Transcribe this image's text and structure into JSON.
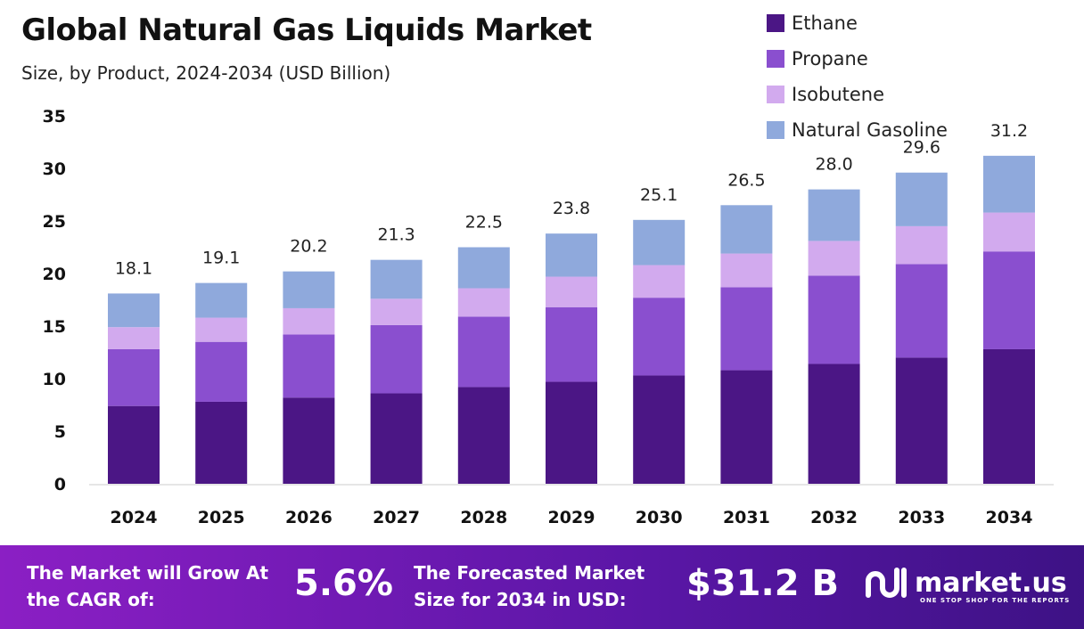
{
  "chart_data": {
    "type": "bar",
    "stacked": true,
    "title": "Global Natural Gas Liquids Market",
    "subtitle": "Size, by Product, 2024-2034 (USD Billion)",
    "categories": [
      "2024",
      "2025",
      "2026",
      "2027",
      "2028",
      "2029",
      "2030",
      "2031",
      "2032",
      "2033",
      "2034"
    ],
    "series": [
      {
        "name": "Ethane",
        "color": "#4b1685",
        "values": [
          7.4,
          7.8,
          8.2,
          8.6,
          9.2,
          9.7,
          10.3,
          10.8,
          11.4,
          12.0,
          12.8
        ]
      },
      {
        "name": "Propane",
        "color": "#8a4fcf",
        "values": [
          5.4,
          5.7,
          6.0,
          6.5,
          6.7,
          7.1,
          7.4,
          7.9,
          8.4,
          8.9,
          9.3
        ]
      },
      {
        "name": "Isobutene",
        "color": "#d2aaee",
        "values": [
          2.1,
          2.3,
          2.5,
          2.5,
          2.7,
          2.9,
          3.1,
          3.2,
          3.3,
          3.6,
          3.7
        ]
      },
      {
        "name": "Natural Gasoline",
        "color": "#8fa9dc",
        "values": [
          3.2,
          3.3,
          3.5,
          3.7,
          3.9,
          4.1,
          4.3,
          4.6,
          4.9,
          5.1,
          5.4
        ]
      }
    ],
    "totals": [
      "18.1",
      "19.1",
      "20.2",
      "21.3",
      "22.5",
      "23.8",
      "25.1",
      "26.5",
      "28.0",
      "29.6",
      "31.2"
    ],
    "ylim": [
      0,
      35
    ],
    "yticks": [
      "0",
      "5",
      "10",
      "15",
      "20",
      "25",
      "30",
      "35"
    ],
    "grid": false,
    "legend": "top-right"
  },
  "footer": {
    "cagr_label": "The Market will Grow At the CAGR of:",
    "cagr_value": "5.6%",
    "forecast_label": "The Forecasted Market Size for 2034 in USD:",
    "forecast_value": "$31.2 B",
    "logo_text": "market.us",
    "logo_tagline": "ONE STOP SHOP FOR THE REPORTS"
  }
}
